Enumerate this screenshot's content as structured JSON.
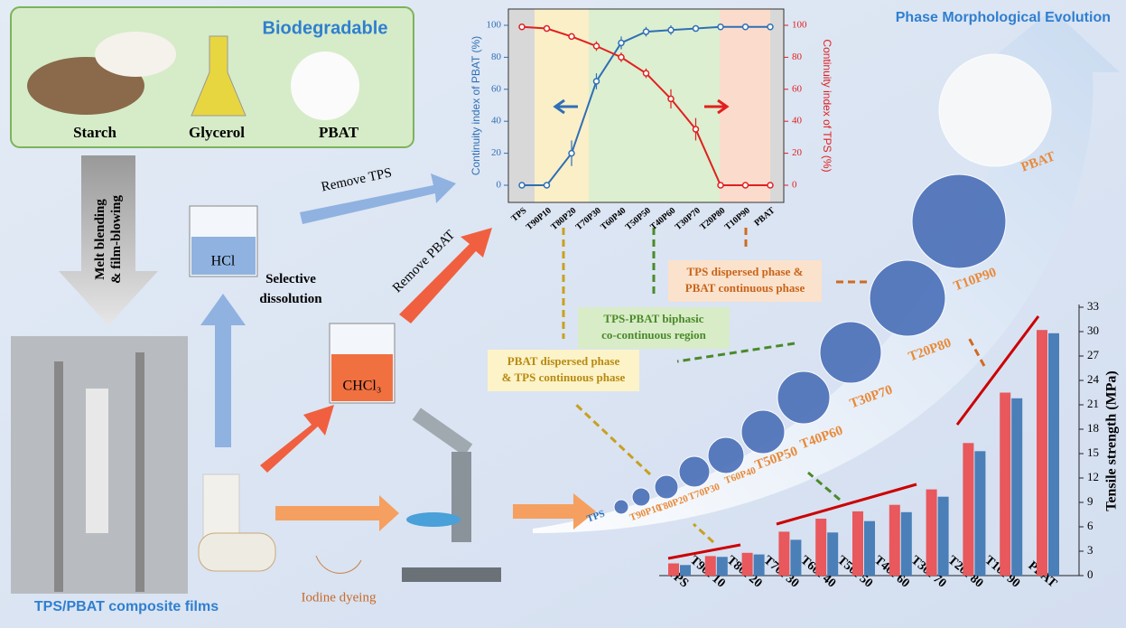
{
  "labels": {
    "biodegradable": "Biodegradable",
    "starch": "Starch",
    "glycerol": "Glycerol",
    "pbat": "PBAT",
    "melt_blending": [
      "Melt blending",
      "& film-blowing"
    ],
    "films": "TPS/PBAT composite films",
    "hcl": "HCl",
    "selective_dissolution": [
      "Selective",
      "dissolution"
    ],
    "chcl3": "CHCl₃",
    "remove_tps": "Remove TPS",
    "remove_pbat": "Remove PBAT",
    "iodine_dyeing": "Iodine dyeing",
    "phase_evolution": "Phase Morphological Evolution",
    "pbat_dispersed": [
      "PBAT dispersed phase",
      "& TPS continuous phase"
    ],
    "biphasic": [
      "TPS-PBAT biphasic",
      "co-continuous region"
    ],
    "tps_dispersed": [
      "TPS dispersed phase &",
      "PBAT continuous phase"
    ]
  },
  "morphology_labels": [
    "TPS",
    "T90P10",
    "T80P20",
    "T70P30",
    "T60P40",
    "T50P50",
    "T40P60",
    "T30P70",
    "T20P80",
    "T10P90",
    "PBAT"
  ],
  "chart_data": [
    {
      "type": "line",
      "categories": [
        "TPS",
        "T90P10",
        "T80P20",
        "T70P30",
        "T60P40",
        "T50P50",
        "T40P60",
        "T30P70",
        "T20P80",
        "T10P90",
        "PBAT"
      ],
      "ylabel": "Continuity index of PBAT (%)",
      "y2label": "Continuity index of TPS (%)",
      "ylim": [
        0,
        100
      ],
      "yticks": [
        0,
        20,
        40,
        60,
        80,
        100
      ],
      "y2lim": [
        0,
        100
      ],
      "y2ticks": [
        0,
        20,
        40,
        60,
        80,
        100
      ],
      "series": [
        {
          "color": "#2f6fb5",
          "values": [
            0,
            0,
            20,
            65,
            89,
            96,
            97,
            98,
            99,
            99,
            99
          ],
          "errors": [
            0,
            0,
            8,
            5,
            4,
            3,
            3,
            1,
            0,
            0,
            0
          ]
        },
        {
          "color": "#e02020",
          "axis": "y2",
          "values": [
            99,
            98,
            93,
            87,
            80,
            70,
            54,
            35,
            0,
            0,
            0
          ],
          "errors": [
            1,
            2,
            2,
            3,
            3,
            3,
            6,
            7,
            0,
            0,
            0
          ]
        }
      ]
    },
    {
      "type": "bar",
      "categories": [
        "TPS",
        "T90P10",
        "T80P20",
        "T70P30",
        "T60P40",
        "T50P50",
        "T40P60",
        "T30P70",
        "T20P80",
        "T10P90",
        "PBAT"
      ],
      "ylabel": "Tensile strength (MPa)",
      "ylim": [
        0,
        33
      ],
      "yticks": [
        0,
        3,
        6,
        9,
        12,
        15,
        18,
        21,
        24,
        27,
        30,
        33
      ],
      "series": [
        {
          "color": "#e8585c",
          "values": [
            1.5,
            2.4,
            2.8,
            5.4,
            7.0,
            7.9,
            8.7,
            10.6,
            16.3,
            22.5,
            30.2
          ]
        },
        {
          "color": "#4a7fb8",
          "values": [
            1.3,
            2.3,
            2.6,
            4.4,
            5.3,
            6.7,
            7.8,
            9.7,
            15.3,
            21.8,
            29.8
          ]
        }
      ]
    }
  ]
}
